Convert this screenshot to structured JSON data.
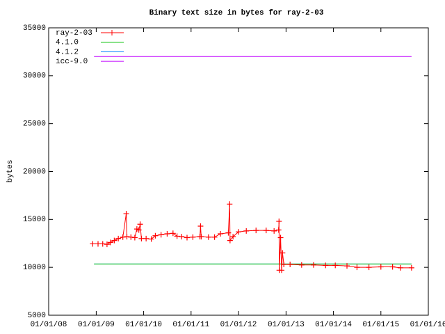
{
  "chart_data": {
    "type": "line",
    "title": "Binary text size in bytes for ray-2-03",
    "ylabel": "bytes",
    "xlim": [
      "2008-01-01",
      "2016-01-01"
    ],
    "xticks": [
      {
        "value": "2008-01-01",
        "label": "01/01/08"
      },
      {
        "value": "2009-01-01",
        "label": "01/01/09"
      },
      {
        "value": "2010-01-01",
        "label": "01/01/10"
      },
      {
        "value": "2011-01-01",
        "label": "01/01/11"
      },
      {
        "value": "2012-01-01",
        "label": "01/01/12"
      },
      {
        "value": "2013-01-01",
        "label": "01/01/13"
      },
      {
        "value": "2014-01-01",
        "label": "01/01/14"
      },
      {
        "value": "2015-01-01",
        "label": "01/01/15"
      },
      {
        "value": "2016-01-01",
        "label": "01/01/16"
      }
    ],
    "ylim": [
      5000,
      35000
    ],
    "yticks": [
      5000,
      10000,
      15000,
      20000,
      25000,
      30000,
      35000
    ],
    "legend": "top-left",
    "series": [
      {
        "name": "ray-2-03",
        "color": "#ff0000",
        "markers": true,
        "x": [
          "2008-12-05",
          "2009-01-15",
          "2009-02-20",
          "2009-03-25",
          "2009-04-20",
          "2009-05-20",
          "2009-06-20",
          "2009-07-25",
          "2009-08-20",
          "2009-08-25",
          "2009-09-25",
          "2009-10-25",
          "2009-11-10",
          "2009-11-25",
          "2009-12-05",
          "2009-12-15",
          "2010-01-20",
          "2010-03-01",
          "2010-04-01",
          "2010-05-15",
          "2010-07-01",
          "2010-08-15",
          "2010-09-15",
          "2010-10-20",
          "2010-12-01",
          "2011-01-15",
          "2011-03-10",
          "2011-03-15",
          "2011-03-20",
          "2011-05-15",
          "2011-07-01",
          "2011-08-15",
          "2011-10-15",
          "2011-10-25",
          "2011-10-28",
          "2011-11-20",
          "2012-01-01",
          "2012-03-01",
          "2012-05-15",
          "2012-08-01",
          "2012-10-01",
          "2012-11-05",
          "2012-11-08",
          "2012-11-10",
          "2012-11-20",
          "2012-11-28",
          "2012-12-05",
          "2012-12-15",
          "2013-02-01",
          "2013-05-01",
          "2013-08-01",
          "2013-11-01",
          "2014-01-15",
          "2014-04-15",
          "2014-07-01",
          "2014-10-01",
          "2015-01-01",
          "2015-04-01",
          "2015-06-01",
          "2015-08-25"
        ],
        "values": [
          12450,
          12450,
          12450,
          12400,
          12600,
          12800,
          13000,
          13150,
          15600,
          13200,
          13150,
          13100,
          14000,
          13900,
          14500,
          13000,
          13000,
          12950,
          13300,
          13400,
          13500,
          13550,
          13250,
          13200,
          13100,
          13150,
          13200,
          14300,
          13200,
          13150,
          13150,
          13500,
          13600,
          16600,
          12800,
          13200,
          13700,
          13800,
          13850,
          13850,
          13800,
          13900,
          14800,
          9700,
          13100,
          9700,
          11500,
          10300,
          10300,
          10250,
          10250,
          10200,
          10200,
          10150,
          10000,
          10000,
          10050,
          10050,
          9950,
          9950
        ]
      },
      {
        "name": "4.1.0",
        "color": "#00c000",
        "x": [
          "2008-12-15",
          "2015-08-25"
        ],
        "values": [
          10350,
          10350
        ]
      },
      {
        "name": "4.1.2",
        "color": "#0080ff",
        "x": [
          "2008-12-15",
          "2015-08-25"
        ],
        "values": [
          10350,
          10350
        ]
      },
      {
        "name": "icc-9.0",
        "color": "#c000ff",
        "x": [
          "2008-12-15",
          "2015-08-25"
        ],
        "values": [
          32000,
          32000
        ]
      }
    ]
  }
}
